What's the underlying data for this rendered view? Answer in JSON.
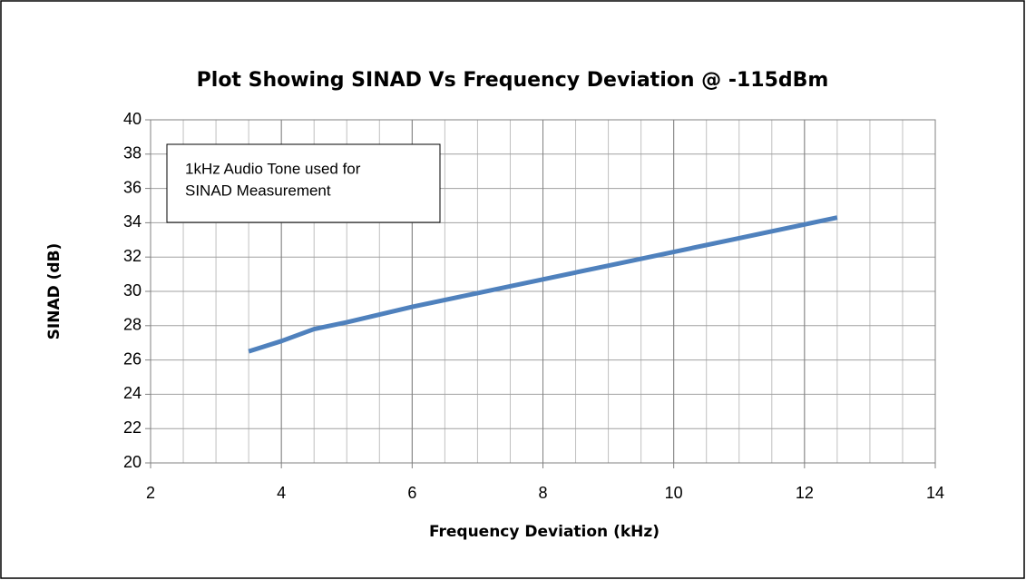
{
  "chart_data": {
    "type": "line",
    "title": "Plot Showing SINAD Vs Frequency Deviation @ -115dBm",
    "x_label": "Frequency Deviation (kHz)",
    "y_label": "SINAD (dB)",
    "annotation": [
      "1kHz Audio Tone used for",
      "SINAD Measurement"
    ],
    "x": [
      3.5,
      4,
      4.5,
      5,
      6,
      7,
      8,
      9,
      10,
      11,
      12,
      12.5
    ],
    "series": [
      {
        "name": "SINAD",
        "color": "#4f81bd",
        "values": [
          26.5,
          27.1,
          27.8,
          28.2,
          29.1,
          29.9,
          30.7,
          31.5,
          32.3,
          33.1,
          33.9,
          34.3
        ]
      }
    ],
    "xlim": [
      2,
      14
    ],
    "xticks": [
      2,
      4,
      6,
      8,
      10,
      12,
      14
    ],
    "ylim": [
      20,
      40
    ],
    "yticks": [
      20,
      22,
      24,
      26,
      28,
      30,
      32,
      34,
      36,
      38,
      40
    ],
    "grid": true,
    "x_minor_grid": 0.5
  }
}
